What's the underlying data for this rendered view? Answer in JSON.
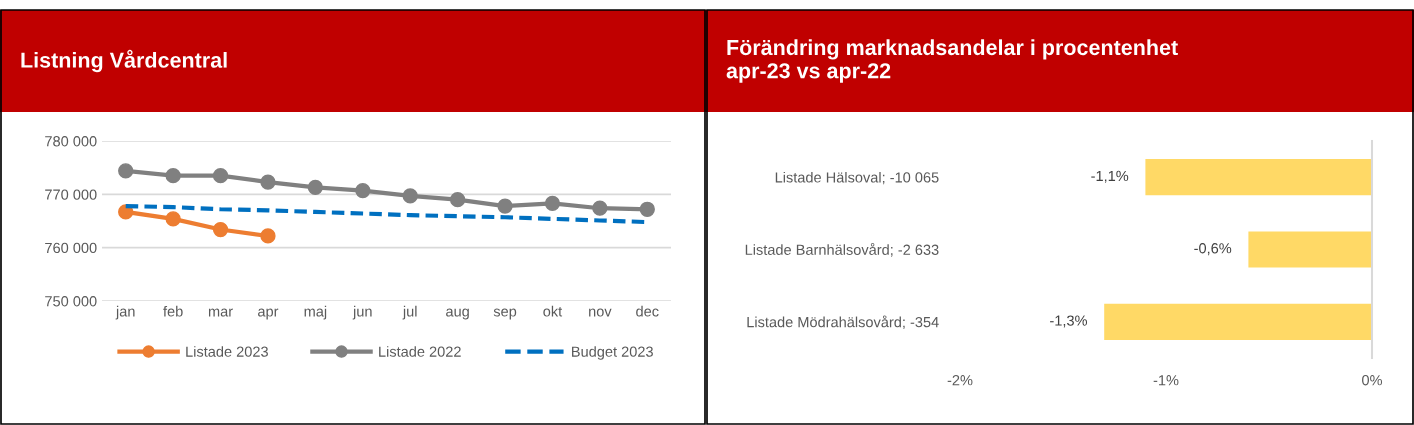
{
  "chart_data": [
    {
      "type": "line",
      "title": "Listning Vårdcentral",
      "categories": [
        "jan",
        "feb",
        "mar",
        "apr",
        "maj",
        "jun",
        "jul",
        "aug",
        "sep",
        "okt",
        "nov",
        "dec"
      ],
      "series": [
        {
          "name": "Listade 2023",
          "color": "#ed7d31",
          "marker": "circle",
          "line_style": "solid",
          "values": [
            766700,
            765400,
            763400,
            762200,
            null,
            null,
            null,
            null,
            null,
            null,
            null,
            null
          ]
        },
        {
          "name": "Listade 2022",
          "color": "#808080",
          "marker": "circle",
          "line_style": "solid",
          "values": [
            774400,
            773500,
            773500,
            772300,
            771300,
            770700,
            769700,
            769000,
            767800,
            768300,
            767400,
            767200
          ]
        },
        {
          "name": "Budget 2023",
          "color": "#0070c0",
          "marker": "none",
          "line_style": "dashed",
          "values": [
            767800,
            767600,
            767200,
            767000,
            766700,
            766400,
            766100,
            765900,
            765700,
            765400,
            765100,
            764800
          ]
        }
      ],
      "ylim": [
        750000,
        780000
      ],
      "yticks": [
        {
          "value": 750000,
          "label": "750 000"
        },
        {
          "value": 760000,
          "label": "760 000"
        },
        {
          "value": 770000,
          "label": "770 000"
        },
        {
          "value": 780000,
          "label": "780 000"
        }
      ],
      "grid": "y",
      "legend": "bottom"
    },
    {
      "type": "bar",
      "orientation": "horizontal",
      "title": "Förändring marknadsandelar i procentenhet\napr-23 vs apr-22",
      "categories": [
        "Listade Hälsoval; -10 065",
        "Listade Barnhälsovård; -2 633",
        "Listade Mödrahälsovård; -354"
      ],
      "values": [
        -1.1,
        -0.6,
        -1.3
      ],
      "color": "#ffd966",
      "value_labels": [
        "-1,1%",
        "-0,6%",
        "-1,3%"
      ],
      "xlim": [
        -2,
        0
      ],
      "xticks": [
        {
          "value": -2,
          "label": "-2%"
        },
        {
          "value": -1,
          "label": "-1%"
        },
        {
          "value": 0,
          "label": "0%"
        }
      ],
      "grid": false,
      "legend": false
    }
  ]
}
